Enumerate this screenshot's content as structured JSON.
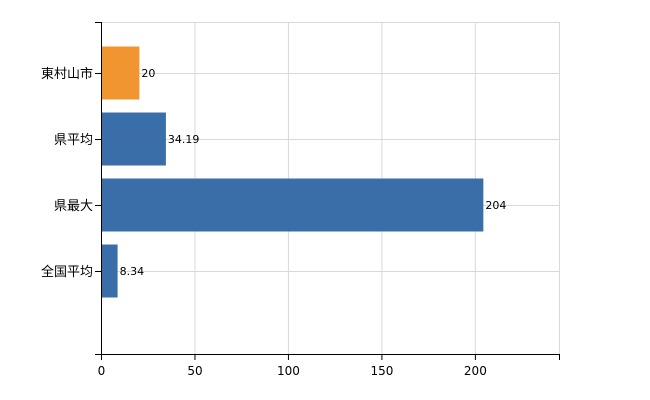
{
  "chart_data": {
    "type": "bar",
    "orientation": "horizontal",
    "categories": [
      "東村山市",
      "県平均",
      "県最大",
      "全国平均"
    ],
    "values": [
      20,
      34.19,
      204,
      8.34
    ],
    "data_labels": [
      "20",
      "34.19",
      "204",
      "8.34"
    ],
    "bar_colors": [
      "#f0952f",
      "#3a6ea8",
      "#3a6ea8",
      "#3a6ea8"
    ],
    "xlim": [
      0,
      245
    ],
    "xticks": [
      0,
      50,
      100,
      150,
      200
    ],
    "xtick_labels": [
      "0",
      "50",
      "100",
      "150",
      "200"
    ],
    "grid": true,
    "title": "",
    "xlabel": "",
    "ylabel": ""
  }
}
